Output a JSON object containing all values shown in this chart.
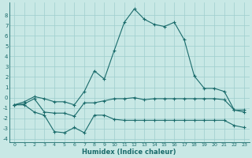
{
  "title": "",
  "xlabel": "Humidex (Indice chaleur)",
  "ylabel": "",
  "bg_color": "#c8e8e5",
  "line_color": "#1a6b6b",
  "grid_color": "#9ecece",
  "x": [
    0,
    1,
    2,
    3,
    4,
    5,
    6,
    7,
    8,
    9,
    10,
    11,
    12,
    13,
    14,
    15,
    16,
    17,
    18,
    19,
    20,
    21,
    22,
    23
  ],
  "y_high": [
    -0.7,
    -0.4,
    0.1,
    -0.1,
    -0.4,
    -0.4,
    -0.7,
    0.6,
    2.6,
    1.8,
    4.6,
    7.3,
    8.6,
    7.6,
    7.1,
    6.9,
    7.3,
    5.6,
    2.1,
    0.9,
    0.9,
    0.6,
    -1.2,
    -1.4
  ],
  "y_mid": [
    -0.7,
    -0.6,
    -0.1,
    -1.4,
    -1.5,
    -1.5,
    -1.8,
    -0.5,
    -0.5,
    -0.3,
    -0.1,
    -0.1,
    0.0,
    -0.2,
    -0.1,
    -0.1,
    -0.1,
    -0.1,
    -0.1,
    -0.1,
    -0.1,
    -0.2,
    -1.2,
    -1.2
  ],
  "y_low": [
    -0.7,
    -0.7,
    -1.4,
    -1.7,
    -3.3,
    -3.4,
    -2.9,
    -3.4,
    -1.7,
    -1.7,
    -2.1,
    -2.2,
    -2.2,
    -2.2,
    -2.2,
    -2.2,
    -2.2,
    -2.2,
    -2.2,
    -2.2,
    -2.2,
    -2.2,
    -2.7,
    -2.9
  ],
  "ylim": [
    -4.3,
    9.2
  ],
  "yticks": [
    -4,
    -3,
    -2,
    -1,
    0,
    1,
    2,
    3,
    4,
    5,
    6,
    7,
    8
  ],
  "xlim": [
    -0.5,
    23.5
  ]
}
